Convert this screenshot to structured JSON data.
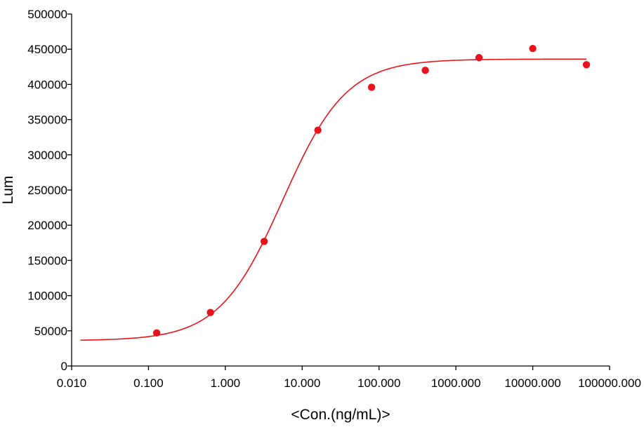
{
  "chart_data": {
    "type": "scatter",
    "title": "",
    "xlabel": "<Con.(ng/mL)>",
    "ylabel": "Lum",
    "x_scale": "log",
    "xlim": [
      0.01,
      100000
    ],
    "ylim": [
      0,
      500000
    ],
    "x_ticks": [
      0.01,
      0.1,
      1,
      10,
      100,
      1000,
      10000,
      100000
    ],
    "x_tick_labels": [
      "0.010",
      "0.100",
      "1.000",
      "10.000",
      "100.000",
      "1000.000",
      "10000.000",
      "100000.000"
    ],
    "y_ticks": [
      0,
      50000,
      100000,
      150000,
      200000,
      250000,
      300000,
      350000,
      400000,
      450000,
      500000
    ],
    "y_tick_labels": [
      "0",
      "50000",
      "100000",
      "150000",
      "200000",
      "250000",
      "300000",
      "350000",
      "400000",
      "450000",
      "500000"
    ],
    "grid": false,
    "legend": "none",
    "series": [
      {
        "points": [
          {
            "x": 0.128,
            "y": 47000
          },
          {
            "x": 0.64,
            "y": 76000
          },
          {
            "x": 3.2,
            "y": 177000
          },
          {
            "x": 16,
            "y": 335000
          },
          {
            "x": 80,
            "y": 396000
          },
          {
            "x": 400,
            "y": 420000
          },
          {
            "x": 2000,
            "y": 438000
          },
          {
            "x": 10000,
            "y": 451000
          },
          {
            "x": 50000,
            "y": 428000
          }
        ],
        "color": "#e8141b"
      }
    ],
    "fit_curve": {
      "model": "4PL",
      "bottom": 36000,
      "top": 436000,
      "ec50": 5.6,
      "hill": 1.05,
      "x_range": [
        0.013,
        50000
      ],
      "color": "#e8141b"
    }
  }
}
